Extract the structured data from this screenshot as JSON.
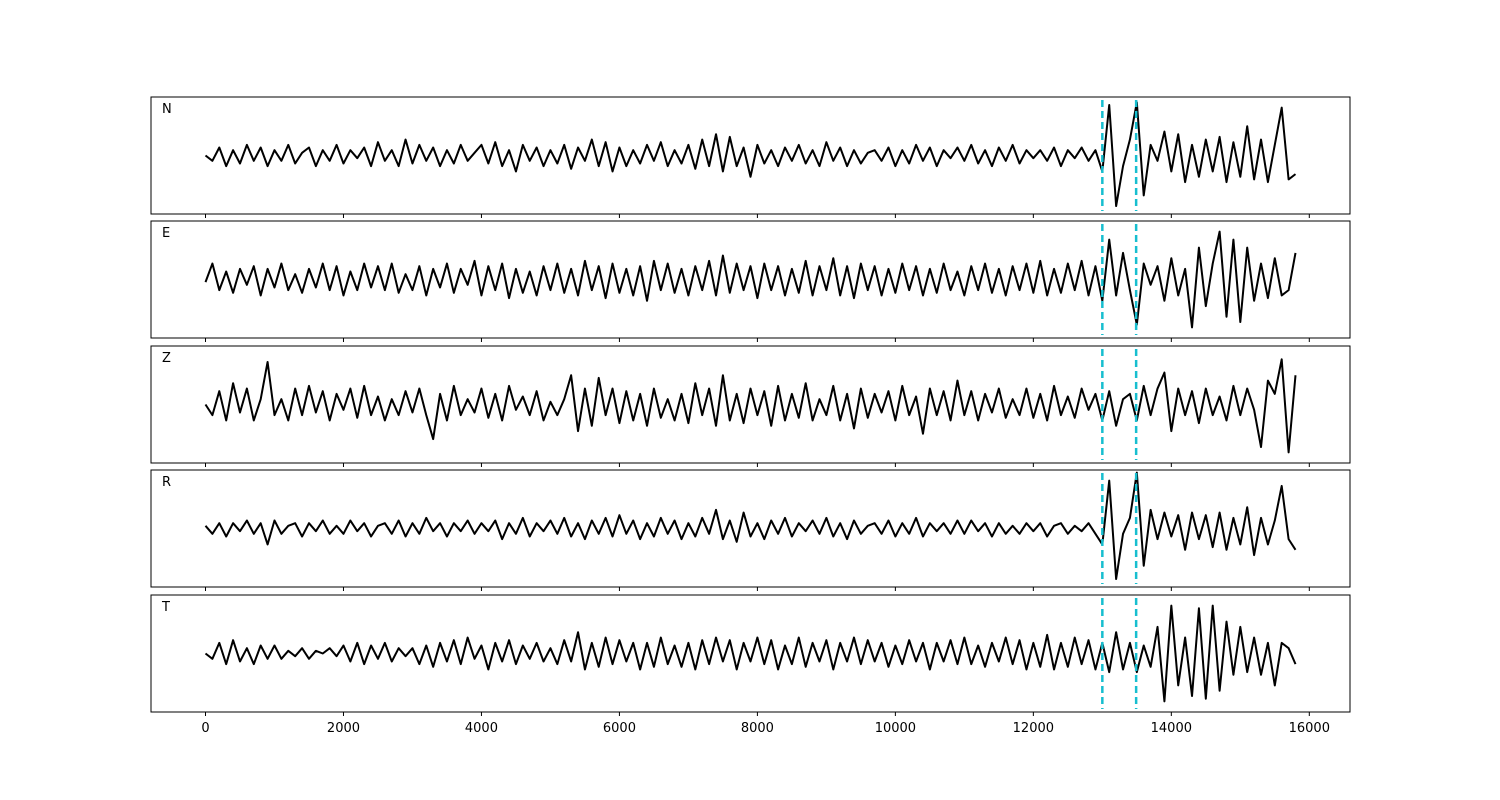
{
  "chart_data": {
    "type": "line",
    "x": [
      0,
      100,
      200,
      300,
      400,
      500,
      600,
      700,
      800,
      900,
      1000,
      1100,
      1200,
      1300,
      1400,
      1500,
      1600,
      1700,
      1800,
      1900,
      2000,
      2100,
      2200,
      2300,
      2400,
      2500,
      2600,
      2700,
      2800,
      2900,
      3000,
      3100,
      3200,
      3300,
      3400,
      3500,
      3600,
      3700,
      3800,
      3900,
      4000,
      4100,
      4200,
      4300,
      4400,
      4500,
      4600,
      4700,
      4800,
      4900,
      5000,
      5100,
      5200,
      5300,
      5400,
      5500,
      5600,
      5700,
      5800,
      5900,
      6000,
      6100,
      6200,
      6300,
      6400,
      6500,
      6600,
      6700,
      6800,
      6900,
      7000,
      7100,
      7200,
      7300,
      7400,
      7500,
      7600,
      7700,
      7800,
      7900,
      8000,
      8100,
      8200,
      8300,
      8400,
      8500,
      8600,
      8700,
      8800,
      8900,
      9000,
      9100,
      9200,
      9300,
      9400,
      9500,
      9600,
      9700,
      9800,
      9900,
      10000,
      10100,
      10200,
      10300,
      10400,
      10500,
      10600,
      10700,
      10800,
      10900,
      11000,
      11100,
      11200,
      11300,
      11400,
      11500,
      11600,
      11700,
      11800,
      11900,
      12000,
      12100,
      12200,
      12300,
      12400,
      12500,
      12600,
      12700,
      12800,
      12900,
      13000,
      13100,
      13200,
      13300,
      13400,
      13500,
      13600,
      13700,
      13800,
      13900,
      14000,
      14100,
      14200,
      14300,
      14400,
      14500,
      14600,
      14700,
      14800,
      14900,
      15000,
      15100,
      15200,
      15300,
      15400,
      15500,
      15600,
      15700,
      15800
    ],
    "xlim": [
      -790,
      16590
    ],
    "xticks": [
      0,
      2000,
      4000,
      6000,
      8000,
      10000,
      12000,
      14000,
      16000
    ],
    "ylim": [
      -1.1,
      1.1
    ],
    "line_color": "#000000",
    "markers": {
      "color": "#17becf",
      "x": [
        13000,
        13490
      ]
    },
    "series": [
      {
        "name": "N",
        "values": [
          0.0,
          -0.1,
          0.15,
          -0.2,
          0.1,
          -0.15,
          0.2,
          -0.1,
          0.15,
          -0.2,
          0.1,
          -0.1,
          0.2,
          -0.15,
          0.05,
          0.15,
          -0.2,
          0.1,
          -0.1,
          0.2,
          -0.15,
          0.1,
          -0.05,
          0.15,
          -0.2,
          0.25,
          -0.1,
          0.1,
          -0.2,
          0.3,
          -0.15,
          0.2,
          -0.1,
          0.15,
          -0.2,
          0.1,
          -0.15,
          0.2,
          -0.1,
          0.05,
          0.2,
          -0.15,
          0.25,
          -0.2,
          0.1,
          -0.3,
          0.2,
          -0.1,
          0.15,
          -0.2,
          0.1,
          -0.15,
          0.2,
          -0.25,
          0.15,
          -0.1,
          0.3,
          -0.2,
          0.25,
          -0.3,
          0.15,
          -0.2,
          0.1,
          -0.15,
          0.2,
          -0.1,
          0.25,
          -0.2,
          0.1,
          -0.15,
          0.2,
          -0.25,
          0.3,
          -0.2,
          0.4,
          -0.3,
          0.35,
          -0.2,
          0.15,
          -0.4,
          0.2,
          -0.15,
          0.1,
          -0.2,
          0.15,
          -0.1,
          0.2,
          -0.15,
          0.1,
          -0.2,
          0.25,
          -0.1,
          0.15,
          -0.2,
          0.1,
          -0.15,
          0.05,
          0.1,
          -0.1,
          0.15,
          -0.2,
          0.1,
          -0.15,
          0.2,
          -0.1,
          0.15,
          -0.2,
          0.1,
          -0.05,
          0.15,
          -0.1,
          0.2,
          -0.15,
          0.1,
          -0.2,
          0.15,
          -0.1,
          0.2,
          -0.15,
          0.1,
          -0.05,
          0.1,
          -0.1,
          0.15,
          -0.2,
          0.1,
          -0.05,
          0.15,
          -0.1,
          0.1,
          -0.3,
          0.95,
          -0.95,
          -0.2,
          0.3,
          1.0,
          -0.75,
          0.2,
          -0.1,
          0.45,
          -0.3,
          0.4,
          -0.5,
          0.2,
          -0.4,
          0.3,
          -0.3,
          0.35,
          -0.5,
          0.25,
          -0.4,
          0.55,
          -0.45,
          0.3,
          -0.5,
          0.2,
          0.9,
          -0.45,
          -0.35
        ]
      },
      {
        "name": "E",
        "values": [
          -0.05,
          0.3,
          -0.2,
          0.15,
          -0.25,
          0.2,
          -0.1,
          0.25,
          -0.3,
          0.2,
          -0.15,
          0.3,
          -0.2,
          0.1,
          -0.25,
          0.2,
          -0.15,
          0.3,
          -0.2,
          0.25,
          -0.3,
          0.15,
          -0.2,
          0.3,
          -0.15,
          0.25,
          -0.2,
          0.3,
          -0.25,
          0.1,
          -0.2,
          0.25,
          -0.3,
          0.2,
          -0.15,
          0.3,
          -0.25,
          0.2,
          -0.1,
          0.35,
          -0.3,
          0.25,
          -0.2,
          0.3,
          -0.35,
          0.2,
          -0.25,
          0.15,
          -0.3,
          0.25,
          -0.2,
          0.3,
          -0.25,
          0.2,
          -0.3,
          0.35,
          -0.2,
          0.25,
          -0.35,
          0.3,
          -0.25,
          0.2,
          -0.3,
          0.25,
          -0.4,
          0.35,
          -0.2,
          0.3,
          -0.25,
          0.2,
          -0.3,
          0.25,
          -0.2,
          0.35,
          -0.3,
          0.45,
          -0.25,
          0.3,
          -0.2,
          0.25,
          -0.35,
          0.3,
          -0.2,
          0.25,
          -0.3,
          0.2,
          -0.25,
          0.35,
          -0.3,
          0.25,
          -0.2,
          0.4,
          -0.3,
          0.25,
          -0.35,
          0.3,
          -0.2,
          0.25,
          -0.3,
          0.2,
          -0.25,
          0.3,
          -0.2,
          0.25,
          -0.3,
          0.2,
          -0.25,
          0.3,
          -0.2,
          0.15,
          -0.3,
          0.25,
          -0.2,
          0.3,
          -0.25,
          0.2,
          -0.3,
          0.25,
          -0.2,
          0.3,
          -0.25,
          0.35,
          -0.3,
          0.2,
          -0.25,
          0.3,
          -0.2,
          0.35,
          -0.3,
          0.25,
          -0.4,
          0.75,
          -0.3,
          0.5,
          -0.2,
          -0.85,
          0.3,
          -0.1,
          0.25,
          -0.4,
          0.4,
          -0.3,
          0.2,
          -0.9,
          0.6,
          -0.5,
          0.3,
          0.9,
          -0.7,
          0.75,
          -0.8,
          0.6,
          -0.4,
          0.3,
          -0.35,
          0.4,
          -0.3,
          -0.2,
          0.5
        ]
      },
      {
        "name": "Z",
        "values": [
          0.0,
          -0.2,
          0.25,
          -0.3,
          0.4,
          -0.15,
          0.3,
          -0.3,
          0.1,
          0.8,
          -0.2,
          0.1,
          -0.3,
          0.3,
          -0.2,
          0.35,
          -0.15,
          0.25,
          -0.3,
          0.2,
          -0.1,
          0.3,
          -0.25,
          0.35,
          -0.2,
          0.15,
          -0.3,
          0.1,
          -0.2,
          0.25,
          -0.15,
          0.3,
          -0.2,
          -0.65,
          0.2,
          -0.3,
          0.35,
          -0.2,
          0.1,
          -0.15,
          0.3,
          -0.25,
          0.2,
          -0.3,
          0.35,
          -0.1,
          0.15,
          -0.2,
          0.25,
          -0.3,
          0.05,
          -0.2,
          0.1,
          0.55,
          -0.5,
          0.3,
          -0.4,
          0.5,
          -0.2,
          0.3,
          -0.35,
          0.25,
          -0.3,
          0.2,
          -0.4,
          0.3,
          -0.25,
          0.1,
          -0.3,
          0.2,
          -0.35,
          0.4,
          -0.2,
          0.3,
          -0.4,
          0.55,
          -0.3,
          0.2,
          -0.35,
          0.3,
          -0.2,
          0.25,
          -0.4,
          0.35,
          -0.3,
          0.2,
          -0.25,
          0.4,
          -0.3,
          0.1,
          -0.2,
          0.35,
          -0.3,
          0.2,
          -0.45,
          0.3,
          -0.25,
          0.2,
          -0.15,
          0.25,
          -0.3,
          0.35,
          -0.2,
          0.15,
          -0.55,
          0.3,
          -0.2,
          0.25,
          -0.3,
          0.45,
          -0.2,
          0.25,
          -0.3,
          0.2,
          -0.15,
          0.3,
          -0.25,
          0.1,
          -0.2,
          0.3,
          -0.25,
          0.2,
          -0.3,
          0.35,
          -0.2,
          0.15,
          -0.25,
          0.3,
          -0.1,
          0.2,
          -0.3,
          0.25,
          -0.4,
          0.1,
          0.2,
          -0.3,
          0.35,
          -0.2,
          0.3,
          0.6,
          -0.5,
          0.3,
          -0.2,
          0.25,
          -0.35,
          0.3,
          -0.2,
          0.15,
          -0.3,
          0.35,
          -0.2,
          0.3,
          -0.1,
          -0.8,
          0.45,
          0.2,
          0.85,
          -0.9,
          0.55
        ]
      },
      {
        "name": "R",
        "values": [
          0.05,
          -0.1,
          0.1,
          -0.15,
          0.1,
          -0.05,
          0.15,
          -0.1,
          0.1,
          -0.3,
          0.15,
          -0.1,
          0.05,
          0.1,
          -0.15,
          0.1,
          -0.05,
          0.15,
          -0.1,
          0.05,
          -0.1,
          0.15,
          -0.05,
          0.1,
          -0.15,
          0.05,
          0.1,
          -0.1,
          0.15,
          -0.15,
          0.1,
          -0.1,
          0.2,
          -0.05,
          0.1,
          -0.15,
          0.1,
          -0.05,
          0.15,
          -0.1,
          0.1,
          -0.05,
          0.15,
          -0.2,
          0.1,
          -0.1,
          0.2,
          -0.15,
          0.1,
          -0.05,
          0.15,
          -0.1,
          0.2,
          -0.15,
          0.1,
          -0.2,
          0.15,
          -0.1,
          0.2,
          -0.15,
          0.25,
          -0.1,
          0.15,
          -0.2,
          0.1,
          -0.15,
          0.2,
          -0.1,
          0.15,
          -0.2,
          0.1,
          -0.15,
          0.2,
          -0.1,
          0.35,
          -0.2,
          0.15,
          -0.25,
          0.3,
          -0.15,
          0.1,
          -0.2,
          0.15,
          -0.1,
          0.2,
          -0.15,
          0.1,
          -0.05,
          0.15,
          -0.1,
          0.2,
          -0.15,
          0.1,
          -0.2,
          0.15,
          -0.1,
          0.05,
          0.1,
          -0.1,
          0.15,
          -0.15,
          0.1,
          -0.1,
          0.2,
          -0.15,
          0.1,
          -0.05,
          0.1,
          -0.1,
          0.15,
          -0.1,
          0.15,
          -0.05,
          0.1,
          -0.15,
          0.1,
          -0.1,
          0.05,
          -0.1,
          0.1,
          -0.05,
          0.1,
          -0.15,
          0.05,
          0.1,
          -0.1,
          0.05,
          -0.05,
          0.1,
          -0.1,
          -0.3,
          0.9,
          -0.95,
          -0.1,
          0.2,
          1.05,
          -0.7,
          0.35,
          -0.2,
          0.3,
          -0.15,
          0.25,
          -0.4,
          0.3,
          -0.2,
          0.25,
          -0.35,
          0.3,
          -0.4,
          0.2,
          -0.3,
          0.4,
          -0.5,
          0.2,
          -0.3,
          0.15,
          0.8,
          -0.2,
          -0.4
        ]
      },
      {
        "name": "T",
        "values": [
          0.0,
          -0.1,
          0.2,
          -0.2,
          0.25,
          -0.15,
          0.1,
          -0.2,
          0.15,
          -0.1,
          0.15,
          -0.1,
          0.05,
          -0.05,
          0.1,
          -0.1,
          0.05,
          0.0,
          0.1,
          -0.05,
          0.15,
          -0.15,
          0.2,
          -0.2,
          0.15,
          -0.1,
          0.2,
          -0.15,
          0.1,
          -0.05,
          0.1,
          -0.2,
          0.15,
          -0.25,
          0.2,
          -0.15,
          0.25,
          -0.2,
          0.3,
          -0.1,
          0.15,
          -0.3,
          0.2,
          -0.15,
          0.25,
          -0.2,
          0.15,
          -0.1,
          0.2,
          -0.15,
          0.1,
          -0.2,
          0.25,
          -0.15,
          0.4,
          -0.3,
          0.2,
          -0.25,
          0.3,
          -0.2,
          0.25,
          -0.15,
          0.2,
          -0.3,
          0.2,
          -0.25,
          0.3,
          -0.2,
          0.15,
          -0.25,
          0.2,
          -0.3,
          0.25,
          -0.2,
          0.3,
          -0.15,
          0.25,
          -0.3,
          0.2,
          -0.15,
          0.3,
          -0.2,
          0.25,
          -0.3,
          0.15,
          -0.2,
          0.3,
          -0.25,
          0.2,
          -0.15,
          0.25,
          -0.3,
          0.2,
          -0.15,
          0.3,
          -0.2,
          0.25,
          -0.15,
          0.2,
          -0.25,
          0.15,
          -0.2,
          0.25,
          -0.15,
          0.2,
          -0.3,
          0.2,
          -0.15,
          0.25,
          -0.2,
          0.3,
          -0.2,
          0.15,
          -0.25,
          0.2,
          -0.15,
          0.3,
          -0.2,
          0.25,
          -0.3,
          0.2,
          -0.25,
          0.35,
          -0.3,
          0.2,
          -0.25,
          0.3,
          -0.2,
          0.25,
          -0.3,
          0.2,
          -0.35,
          0.4,
          -0.3,
          0.2,
          -0.35,
          0.15,
          -0.25,
          0.5,
          -0.9,
          0.9,
          -0.6,
          0.3,
          -0.8,
          0.85,
          -0.85,
          0.9,
          -0.7,
          0.6,
          -0.4,
          0.5,
          -0.35,
          0.3,
          -0.4,
          0.2,
          -0.6,
          0.2,
          0.1,
          -0.2
        ]
      }
    ]
  }
}
